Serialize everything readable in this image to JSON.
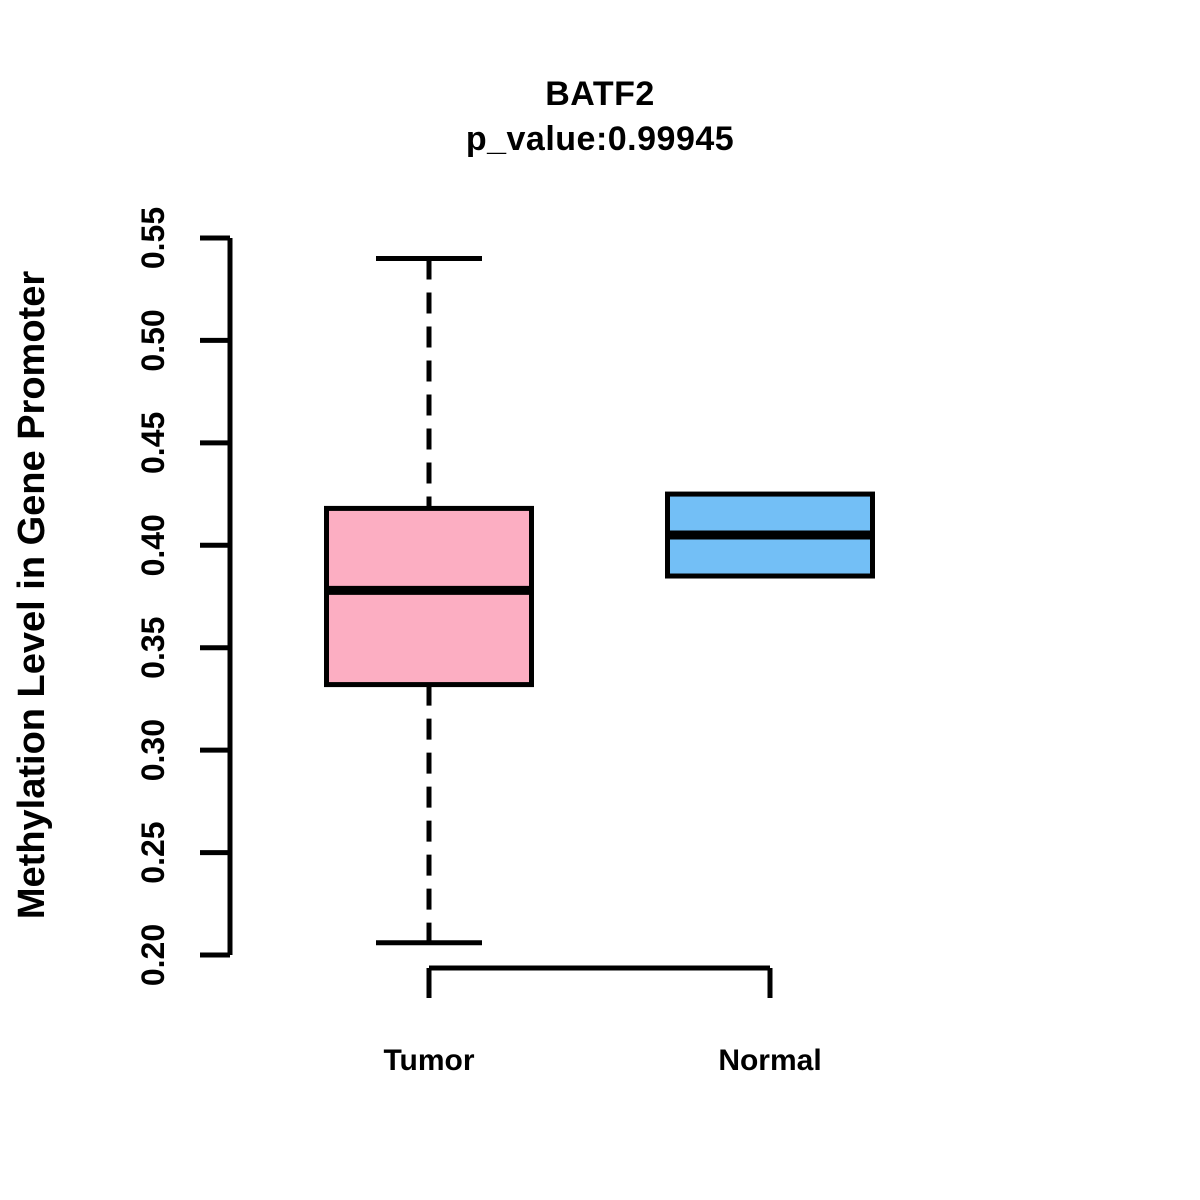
{
  "title": "BATF2",
  "subtitle": "p_value:0.99945",
  "chart_data": {
    "type": "boxplot",
    "title": "BATF2",
    "subtitle": "p_value:0.99945",
    "xlabel": "",
    "ylabel": "Methylation Level in Gene Promoter",
    "categories": [
      "Tumor",
      "Normal"
    ],
    "ylim": [
      0.2,
      0.55
    ],
    "yticks": [
      0.2,
      0.25,
      0.3,
      0.35,
      0.4,
      0.45,
      0.5,
      0.55
    ],
    "grid": false,
    "legend": "none",
    "series": [
      {
        "name": "Tumor",
        "fill_color": "#FCAEC2",
        "whisker_low": 0.206,
        "q1": 0.332,
        "median": 0.378,
        "q3": 0.418,
        "whisker_high": 0.54,
        "whisker_style": "dashed"
      },
      {
        "name": "Normal",
        "fill_color": "#73BFF6",
        "whisker_low": 0.385,
        "q1": 0.385,
        "median": 0.405,
        "q3": 0.425,
        "whisker_high": 0.425,
        "whisker_style": "dashed"
      }
    ],
    "colors": {
      "line": "#000000",
      "background": "#FFFFFF",
      "tumor_fill": "#FCAEC2",
      "normal_fill": "#73BFF6"
    }
  }
}
